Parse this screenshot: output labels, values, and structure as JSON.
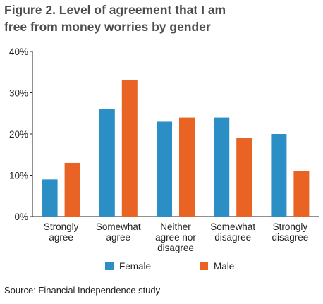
{
  "title_lines": [
    "Figure 2. Level of agreement that I am",
    "free from money worries by gender"
  ],
  "source": "Source: Financial Independence study",
  "chart_data": {
    "type": "bar",
    "title": "Figure 2. Level of agreement that I am free from money worries by gender",
    "categories": [
      [
        "Strongly",
        "agree"
      ],
      [
        "Somewhat",
        "agree"
      ],
      [
        "Neither",
        "agree nor",
        "disagree"
      ],
      [
        "Somewhat",
        "disagree"
      ],
      [
        "Strongly",
        "disagree"
      ]
    ],
    "series": [
      {
        "name": "Female",
        "color": "#2b8fc6",
        "values": [
          9,
          26,
          23,
          24,
          20
        ]
      },
      {
        "name": "Male",
        "color": "#e96424",
        "values": [
          13,
          33,
          24,
          19,
          11
        ]
      }
    ],
    "ylim": [
      0,
      40
    ],
    "yticks": [
      0,
      10,
      20,
      30,
      40
    ],
    "ytick_labels": [
      "0%",
      "10%",
      "20%",
      "30%",
      "40%"
    ],
    "grid": false,
    "legend_position": "bottom"
  }
}
